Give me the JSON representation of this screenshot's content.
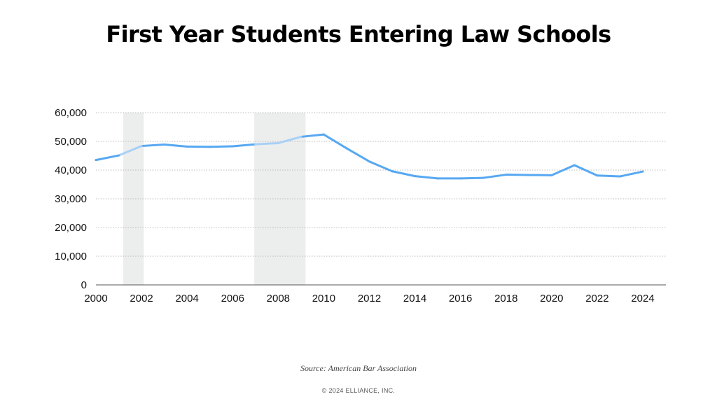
{
  "title": "First Year Students Entering Law Schools",
  "source": "Source: American Bar Association",
  "copyright": "© 2024 ELLIANCE, INC.",
  "colors": {
    "line": "#57a8f2",
    "line_in_band": "#a9d0f6",
    "band": "#eceeed",
    "grid": "#bbbbbb",
    "axis": "#555555"
  },
  "chart_data": {
    "type": "line",
    "title": "First Year Students Entering Law Schools",
    "xlabel": "",
    "ylabel": "",
    "xlim": [
      2000,
      2024
    ],
    "ylim": [
      0,
      60000
    ],
    "x_ticks": [
      2000,
      2002,
      2004,
      2006,
      2008,
      2010,
      2012,
      2014,
      2016,
      2018,
      2020,
      2022,
      2024
    ],
    "x_tick_labels": [
      "2000",
      "2002",
      "2004",
      "2006",
      "2008",
      "2010",
      "2012",
      "2014",
      "2016",
      "2018",
      "2020",
      "2022",
      "2024"
    ],
    "y_ticks": [
      0,
      10000,
      20000,
      30000,
      40000,
      50000,
      60000
    ],
    "y_tick_labels": [
      "0",
      "10,000",
      "20,000",
      "30,000",
      "40,000",
      "50,000",
      "60,000"
    ],
    "grid": "horizontal dotted",
    "shaded_periods": [
      [
        2001.2,
        2002.1
      ],
      [
        2006.95,
        2009.2
      ]
    ],
    "series": [
      {
        "x": [
          2000,
          2001,
          2002,
          2003,
          2004,
          2005,
          2006,
          2007,
          2008,
          2009,
          2010,
          2011,
          2012,
          2013,
          2014,
          2015,
          2016,
          2017,
          2018,
          2019,
          2020,
          2021,
          2022,
          2023,
          2024
        ],
        "values": [
          43500,
          45100,
          48400,
          48900,
          48200,
          48100,
          48300,
          49000,
          49400,
          51600,
          52400,
          47600,
          43000,
          39600,
          37900,
          37100,
          37100,
          37300,
          38400,
          38300,
          38200,
          41700,
          38100,
          37800,
          39500
        ]
      }
    ]
  }
}
